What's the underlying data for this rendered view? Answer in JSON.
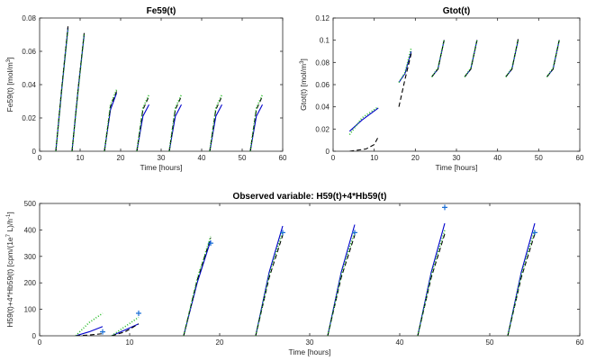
{
  "chart_data": [
    {
      "type": "line",
      "title": "Fe59(t)",
      "xlabel": "Time [hours]",
      "ylabel": {
        "main": "Fe59(t) [mol/m",
        "sup": "3",
        "end": "]"
      },
      "xlim": [
        0,
        60
      ],
      "ylim": [
        0,
        0.08
      ],
      "xticks": [
        0,
        10,
        20,
        30,
        40,
        50,
        60
      ],
      "yticks": [
        0,
        0.02,
        0.04,
        0.06,
        0.08
      ],
      "yticklabels": [
        "0",
        "0.02",
        "0.04",
        "0.06",
        "0.08"
      ],
      "grid": false,
      "series": [
        {
          "color": "#0000cc",
          "style": "solid",
          "segments": [
            {
              "x": [
                4,
                5.5,
                7
              ],
              "y": [
                0,
                0.038,
                0.074
              ]
            },
            {
              "x": [
                8,
                9.5,
                11
              ],
              "y": [
                0,
                0.037,
                0.07
              ]
            },
            {
              "x": [
                16,
                17.5,
                19
              ],
              "y": [
                0,
                0.025,
                0.035
              ]
            },
            {
              "x": [
                24,
                25.5,
                27
              ],
              "y": [
                0,
                0.021,
                0.028
              ]
            },
            {
              "x": [
                32,
                33.5,
                35
              ],
              "y": [
                0,
                0.021,
                0.028
              ]
            },
            {
              "x": [
                42,
                43.5,
                45
              ],
              "y": [
                0,
                0.021,
                0.028
              ]
            },
            {
              "x": [
                52,
                53.5,
                55
              ],
              "y": [
                0,
                0.021,
                0.028
              ]
            }
          ]
        },
        {
          "color": "#000000",
          "style": "dashed",
          "segments": [
            {
              "x": [
                4,
                5.5,
                7
              ],
              "y": [
                0,
                0.039,
                0.075
              ]
            },
            {
              "x": [
                8,
                9.5,
                11
              ],
              "y": [
                0,
                0.037,
                0.071
              ]
            },
            {
              "x": [
                16,
                17.5,
                19
              ],
              "y": [
                0,
                0.027,
                0.036
              ]
            },
            {
              "x": [
                24,
                25.5,
                27
              ],
              "y": [
                0,
                0.025,
                0.033
              ]
            },
            {
              "x": [
                32,
                33.5,
                35
              ],
              "y": [
                0,
                0.025,
                0.033
              ]
            },
            {
              "x": [
                42,
                43.5,
                45
              ],
              "y": [
                0,
                0.025,
                0.033
              ]
            },
            {
              "x": [
                52,
                53.5,
                55
              ],
              "y": [
                0,
                0.025,
                0.033
              ]
            }
          ]
        },
        {
          "color": "#22bb22",
          "style": "dotted",
          "segments": [
            {
              "x": [
                4,
                5.5,
                7
              ],
              "y": [
                0,
                0.038,
                0.073
              ]
            },
            {
              "x": [
                8,
                9.5,
                11
              ],
              "y": [
                0,
                0.036,
                0.07
              ]
            },
            {
              "x": [
                16,
                17.5,
                19
              ],
              "y": [
                0,
                0.028,
                0.037
              ]
            },
            {
              "x": [
                24,
                25.5,
                27
              ],
              "y": [
                0,
                0.026,
                0.034
              ]
            },
            {
              "x": [
                32,
                33.5,
                35
              ],
              "y": [
                0,
                0.026,
                0.034
              ]
            },
            {
              "x": [
                42,
                43.5,
                45
              ],
              "y": [
                0,
                0.026,
                0.034
              ]
            },
            {
              "x": [
                52,
                53.5,
                55
              ],
              "y": [
                0,
                0.026,
                0.034
              ]
            }
          ]
        }
      ],
      "markers": []
    },
    {
      "type": "line",
      "title": "Gtot(t)",
      "xlabel": "Time [hours]",
      "ylabel": {
        "main": "Gtot(t) [mol/m",
        "sup": "3",
        "end": "]"
      },
      "xlim": [
        0,
        60
      ],
      "ylim": [
        0,
        0.12
      ],
      "xticks": [
        0,
        10,
        20,
        30,
        40,
        50,
        60
      ],
      "yticks": [
        0,
        0.02,
        0.04,
        0.06,
        0.08,
        0.1,
        0.12
      ],
      "yticklabels": [
        "0",
        "0.02",
        "0.04",
        "0.06",
        "0.08",
        "0.1",
        "0.12"
      ],
      "grid": false,
      "series": [
        {
          "color": "#0000cc",
          "style": "solid",
          "segments": [
            {
              "x": [
                4,
                7,
                11
              ],
              "y": [
                0.018,
                0.028,
                0.039
              ]
            },
            {
              "x": [
                16,
                17.5,
                19
              ],
              "y": [
                0.062,
                0.07,
                0.09
              ]
            },
            {
              "x": [
                24,
                25.5,
                27
              ],
              "y": [
                0.067,
                0.074,
                0.1
              ]
            },
            {
              "x": [
                32,
                33.5,
                35
              ],
              "y": [
                0.067,
                0.074,
                0.1
              ]
            },
            {
              "x": [
                42,
                43.5,
                45
              ],
              "y": [
                0.067,
                0.074,
                0.1
              ]
            },
            {
              "x": [
                52,
                53.5,
                55
              ],
              "y": [
                0.067,
                0.074,
                0.1
              ]
            }
          ]
        },
        {
          "color": "#000000",
          "style": "dashed",
          "segments": [
            {
              "x": [
                4,
                8,
                10,
                11
              ],
              "y": [
                0,
                0.002,
                0.006,
                0.013
              ]
            },
            {
              "x": [
                16,
                17.5,
                19
              ],
              "y": [
                0.04,
                0.065,
                0.088
              ]
            },
            {
              "x": [
                24,
                25.5,
                27
              ],
              "y": [
                0.067,
                0.074,
                0.1
              ]
            },
            {
              "x": [
                32,
                33.5,
                35
              ],
              "y": [
                0.067,
                0.074,
                0.1
              ]
            },
            {
              "x": [
                42,
                43.5,
                45
              ],
              "y": [
                0.067,
                0.074,
                0.101
              ]
            },
            {
              "x": [
                52,
                53.5,
                55
              ],
              "y": [
                0.067,
                0.074,
                0.1
              ]
            }
          ]
        },
        {
          "color": "#22bb22",
          "style": "dotted",
          "segments": [
            {
              "x": [
                4,
                7,
                11
              ],
              "y": [
                0.015,
                0.03,
                0.04
              ]
            },
            {
              "x": [
                16,
                17.5,
                19
              ],
              "y": [
                0.062,
                0.071,
                0.093
              ]
            },
            {
              "x": [
                24,
                25.5,
                27
              ],
              "y": [
                0.067,
                0.075,
                0.1
              ]
            },
            {
              "x": [
                32,
                33.5,
                35
              ],
              "y": [
                0.067,
                0.075,
                0.1
              ]
            },
            {
              "x": [
                42,
                43.5,
                45
              ],
              "y": [
                0.067,
                0.075,
                0.1
              ]
            },
            {
              "x": [
                52,
                53.5,
                55
              ],
              "y": [
                0.067,
                0.075,
                0.1
              ]
            }
          ]
        }
      ],
      "markers": []
    },
    {
      "type": "line",
      "title": "Observed variable: H59(t)+4*Hb59(t)",
      "xlabel": "Time [hours]",
      "ylabel": {
        "main": "H59(t)+4*Hb59(t) [cpm/(1e",
        "sup": "7",
        "end": " L)/h",
        "sup2": "-1",
        "end2": "]"
      },
      "xlim": [
        0,
        60
      ],
      "ylim": [
        0,
        500
      ],
      "xticks": [
        0,
        10,
        20,
        30,
        40,
        50,
        60
      ],
      "yticks": [
        0,
        100,
        200,
        300,
        400,
        500
      ],
      "yticklabels": [
        "0",
        "100",
        "200",
        "300",
        "400",
        "500"
      ],
      "grid": false,
      "series": [
        {
          "color": "#0000cc",
          "style": "solid",
          "segments": [
            {
              "x": [
                4,
                5.5,
                7
              ],
              "y": [
                0,
                15,
                35
              ]
            },
            {
              "x": [
                8,
                9.5,
                11
              ],
              "y": [
                0,
                22,
                45
              ]
            },
            {
              "x": [
                16,
                17.5,
                19
              ],
              "y": [
                0,
                200,
                360
              ]
            },
            {
              "x": [
                24,
                25.5,
                27
              ],
              "y": [
                0,
                240,
                415
              ]
            },
            {
              "x": [
                32,
                33.5,
                35
              ],
              "y": [
                0,
                240,
                420
              ]
            },
            {
              "x": [
                42,
                43.5,
                45
              ],
              "y": [
                0,
                240,
                425
              ]
            },
            {
              "x": [
                52,
                53.5,
                55
              ],
              "y": [
                0,
                240,
                425
              ]
            }
          ]
        },
        {
          "color": "#000000",
          "style": "dashed",
          "segments": [
            {
              "x": [
                4,
                5.5,
                7
              ],
              "y": [
                0,
                3,
                8
              ]
            },
            {
              "x": [
                8,
                9.5,
                11
              ],
              "y": [
                0,
                15,
                45
              ]
            },
            {
              "x": [
                16,
                17.5,
                19
              ],
              "y": [
                0,
                210,
                370
              ]
            },
            {
              "x": [
                24,
                25.5,
                27
              ],
              "y": [
                0,
                220,
                380
              ]
            },
            {
              "x": [
                32,
                33.5,
                35
              ],
              "y": [
                0,
                220,
                380
              ]
            },
            {
              "x": [
                42,
                43.5,
                45
              ],
              "y": [
                0,
                220,
                385
              ]
            },
            {
              "x": [
                52,
                53.5,
                55
              ],
              "y": [
                0,
                220,
                385
              ]
            }
          ]
        },
        {
          "color": "#22bb22",
          "style": "dotted",
          "segments": [
            {
              "x": [
                4,
                5.5,
                7
              ],
              "y": [
                0,
                50,
                85
              ]
            },
            {
              "x": [
                8,
                9.5,
                11
              ],
              "y": [
                0,
                35,
                70
              ]
            },
            {
              "x": [
                16,
                17.5,
                19
              ],
              "y": [
                0,
                215,
                375
              ]
            },
            {
              "x": [
                24,
                25.5,
                27
              ],
              "y": [
                0,
                230,
                395
              ]
            },
            {
              "x": [
                32,
                33.5,
                35
              ],
              "y": [
                0,
                230,
                395
              ]
            },
            {
              "x": [
                42,
                43.5,
                45
              ],
              "y": [
                0,
                230,
                400
              ]
            },
            {
              "x": [
                52,
                53.5,
                55
              ],
              "y": [
                0,
                230,
                400
              ]
            }
          ]
        }
      ],
      "markers": {
        "color": "#1a6fd6",
        "symbol": "+",
        "x": [
          7,
          11,
          19,
          27,
          35,
          45,
          55
        ],
        "y": [
          15,
          85,
          350,
          390,
          390,
          485,
          390
        ]
      }
    }
  ]
}
